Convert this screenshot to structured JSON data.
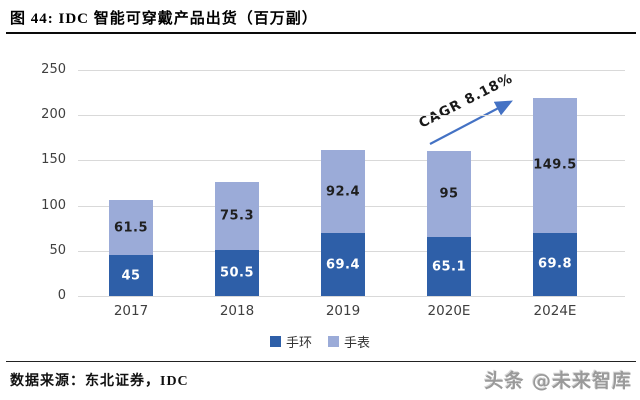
{
  "title": "图  44:  IDC 智能可穿戴产品出货（百万副）",
  "chart_data": {
    "type": "bar",
    "stacked": true,
    "title": "IDC 智能可穿戴产品出货（百万副）",
    "categories": [
      "2017",
      "2018",
      "2019",
      "2020E",
      "2024E"
    ],
    "series": [
      {
        "name": "手环",
        "color": "#2E5FA8",
        "label_color": "#FFFFFF",
        "values": [
          45,
          50.5,
          69.4,
          65.1,
          69.8
        ]
      },
      {
        "name": "手表",
        "color": "#9BABD8",
        "label_color": "#1F1F1F",
        "values": [
          61.5,
          75.3,
          92.4,
          95,
          149.5
        ]
      }
    ],
    "ylim": [
      0,
      250
    ],
    "yticks": [
      0,
      50,
      100,
      150,
      200,
      250
    ],
    "grid": true,
    "legend_position": "bottom",
    "annotation": {
      "text": "CAGR 8.18%",
      "arrow_color": "#4472C4"
    }
  },
  "footer": {
    "source": "数据来源：东北证券，IDC",
    "watermark": "头条 @未来智库"
  },
  "colors": {
    "grid": "#D9D9D9",
    "axis_text": "#3F3F3F"
  }
}
